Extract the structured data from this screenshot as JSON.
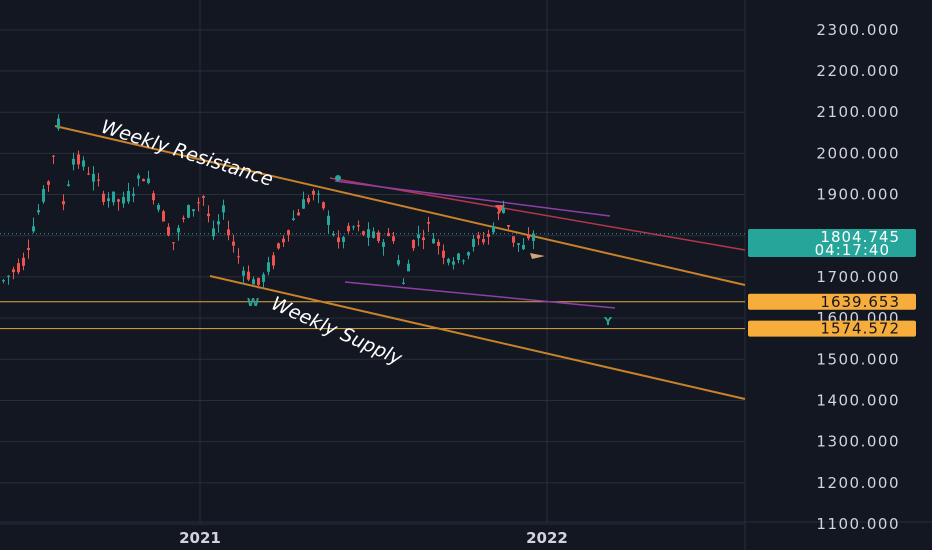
{
  "colors": {
    "background": "#131722",
    "grid": "#2a2e39",
    "up": "#26a69a",
    "down": "#ef5350",
    "trendline_orange": "#c8822a",
    "trendline_red": "#b2374a",
    "trendline_purple": "#8e3fa6",
    "hline": "#e0a83c",
    "current_badge": "#26a69a",
    "level_badge": "#f6ad3c",
    "axis_text": "#d1d4dc"
  },
  "chart_data": {
    "type": "candlestick",
    "title": "",
    "y_axis_ticks": [
      "2300.000",
      "2200.000",
      "2100.000",
      "2000.000",
      "1900.000",
      "1800.000",
      "1700.000",
      "1600.000",
      "1500.000",
      "1400.000",
      "1300.000",
      "1200.000",
      "1100.000"
    ],
    "x_axis_ticks": [
      "2021",
      "2022"
    ],
    "ylim": [
      1100,
      2330
    ],
    "current_price": {
      "value": "1804.745",
      "countdown": "04:17:40"
    },
    "horizontal_levels": [
      {
        "label": "1639.653",
        "value": 1639.653
      },
      {
        "label": "1574.572",
        "value": 1574.572
      }
    ],
    "annotations": {
      "resistance": "Weekly Resistance",
      "supply": "Weekly Supply",
      "marker_w": "W",
      "marker_y": "Y"
    },
    "price_path_anchors": [
      [
        0,
        1690
      ],
      [
        4,
        1740
      ],
      [
        6,
        1825
      ],
      [
        9,
        1930
      ],
      [
        11,
        2070
      ],
      [
        12,
        1880
      ],
      [
        14,
        1990
      ],
      [
        17,
        1960
      ],
      [
        20,
        1900
      ],
      [
        24,
        1880
      ],
      [
        28,
        1950
      ],
      [
        31,
        1880
      ],
      [
        34,
        1785
      ],
      [
        37,
        1860
      ],
      [
        40,
        1895
      ],
      [
        42,
        1800
      ],
      [
        44,
        1855
      ],
      [
        46,
        1780
      ],
      [
        48,
        1720
      ],
      [
        51,
        1680
      ],
      [
        54,
        1740
      ],
      [
        57,
        1820
      ],
      [
        60,
        1880
      ],
      [
        62,
        1900
      ],
      [
        64,
        1870
      ],
      [
        67,
        1780
      ],
      [
        70,
        1820
      ],
      [
        73,
        1800
      ],
      [
        76,
        1790
      ],
      [
        78,
        1800
      ],
      [
        80,
        1680
      ],
      [
        82,
        1785
      ],
      [
        85,
        1820
      ],
      [
        88,
        1760
      ],
      [
        91,
        1740
      ],
      [
        94,
        1780
      ],
      [
        97,
        1800
      ],
      [
        100,
        1870
      ],
      [
        102,
        1790
      ],
      [
        104,
        1770
      ],
      [
        106,
        1795
      ]
    ]
  }
}
